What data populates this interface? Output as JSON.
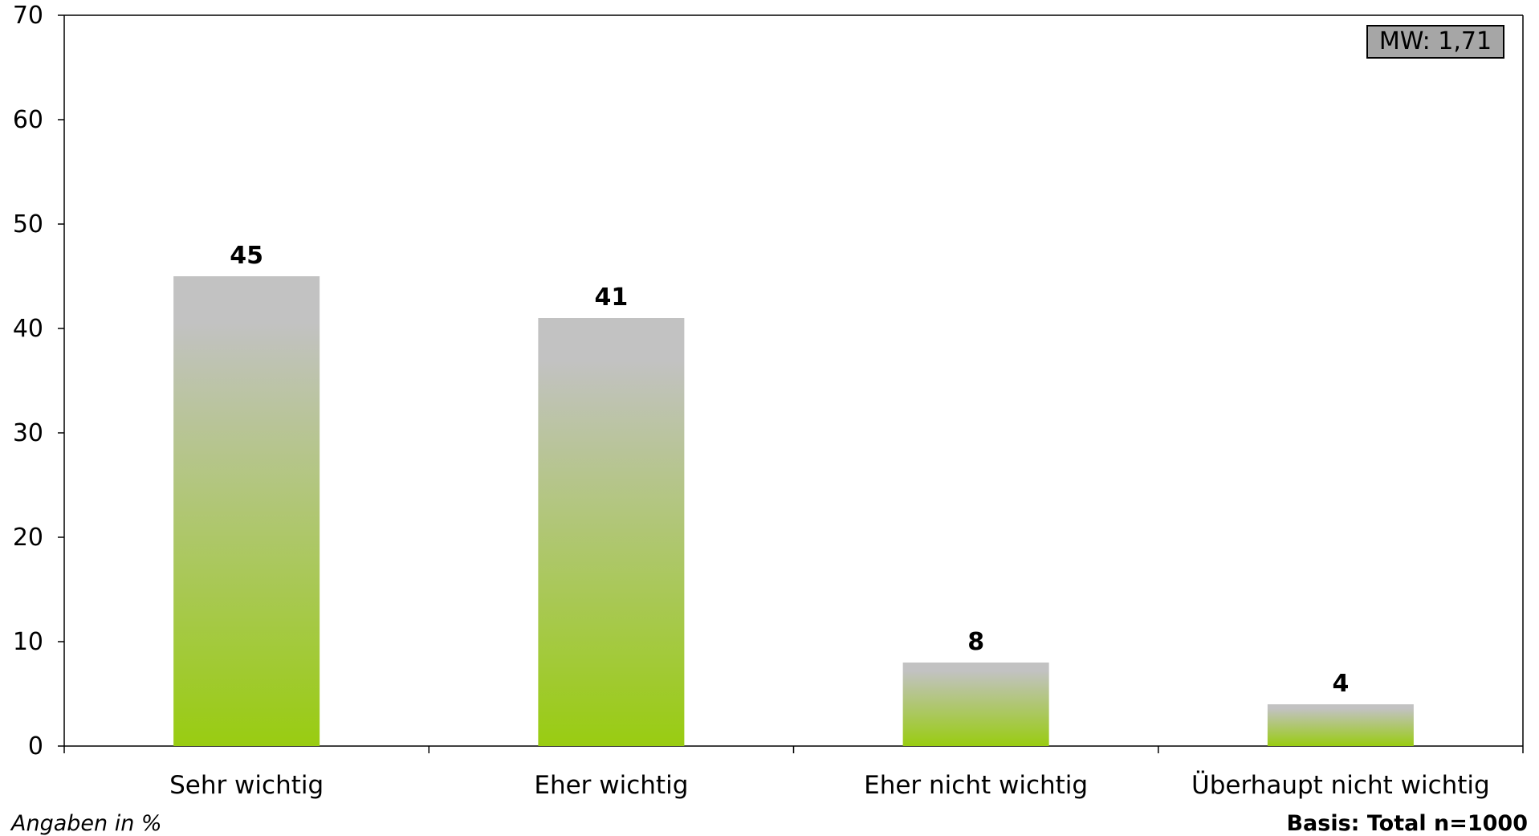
{
  "chart_data": {
    "type": "bar",
    "categories": [
      "Sehr wichtig",
      "Eher wichtig",
      "Eher nicht wichtig",
      "Überhaupt nicht wichtig"
    ],
    "values": [
      45,
      41,
      8,
      4
    ],
    "data_labels": [
      "45",
      "41",
      "8",
      "4"
    ],
    "ylim": [
      0,
      70
    ],
    "yticks": [
      0,
      10,
      20,
      30,
      40,
      50,
      60,
      70
    ],
    "grid": false,
    "legend": "none",
    "colors": {
      "bar_top": "#c0c0c0",
      "bar_bottom": "#99cc11",
      "axis": "#000000"
    }
  },
  "annotations": {
    "mean_box": "MW: 1,71",
    "mean_box_bg": "#a6a6a6"
  },
  "footer": {
    "left_note": "Angaben in %",
    "right_note": "Basis: Total n=1000"
  }
}
